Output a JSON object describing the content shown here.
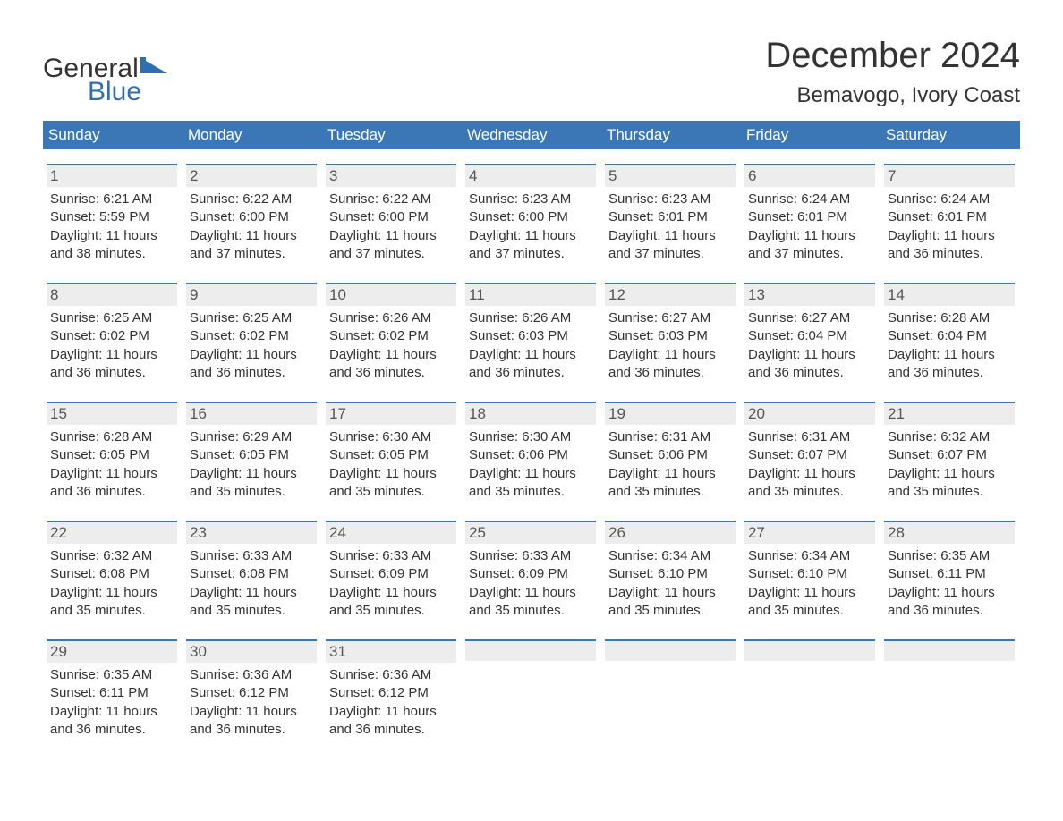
{
  "logo": {
    "top_text": "General",
    "bottom_text": "Blue",
    "icon_color": "#2f6fb1"
  },
  "title": "December 2024",
  "location": "Bemavogo, Ivory Coast",
  "colors": {
    "header_bg": "#3b76b6",
    "header_text": "#ffffff",
    "daynum_bg": "#ededed",
    "daynum_border": "#3b76b6",
    "body_text": "#333333",
    "logo_blue": "#2f6fb1"
  },
  "day_labels": [
    "Sunday",
    "Monday",
    "Tuesday",
    "Wednesday",
    "Thursday",
    "Friday",
    "Saturday"
  ],
  "weeks": [
    [
      {
        "num": "1",
        "sunrise": "Sunrise: 6:21 AM",
        "sunset": "Sunset: 5:59 PM",
        "daylight": "Daylight: 11 hours and 38 minutes."
      },
      {
        "num": "2",
        "sunrise": "Sunrise: 6:22 AM",
        "sunset": "Sunset: 6:00 PM",
        "daylight": "Daylight: 11 hours and 37 minutes."
      },
      {
        "num": "3",
        "sunrise": "Sunrise: 6:22 AM",
        "sunset": "Sunset: 6:00 PM",
        "daylight": "Daylight: 11 hours and 37 minutes."
      },
      {
        "num": "4",
        "sunrise": "Sunrise: 6:23 AM",
        "sunset": "Sunset: 6:00 PM",
        "daylight": "Daylight: 11 hours and 37 minutes."
      },
      {
        "num": "5",
        "sunrise": "Sunrise: 6:23 AM",
        "sunset": "Sunset: 6:01 PM",
        "daylight": "Daylight: 11 hours and 37 minutes."
      },
      {
        "num": "6",
        "sunrise": "Sunrise: 6:24 AM",
        "sunset": "Sunset: 6:01 PM",
        "daylight": "Daylight: 11 hours and 37 minutes."
      },
      {
        "num": "7",
        "sunrise": "Sunrise: 6:24 AM",
        "sunset": "Sunset: 6:01 PM",
        "daylight": "Daylight: 11 hours and 36 minutes."
      }
    ],
    [
      {
        "num": "8",
        "sunrise": "Sunrise: 6:25 AM",
        "sunset": "Sunset: 6:02 PM",
        "daylight": "Daylight: 11 hours and 36 minutes."
      },
      {
        "num": "9",
        "sunrise": "Sunrise: 6:25 AM",
        "sunset": "Sunset: 6:02 PM",
        "daylight": "Daylight: 11 hours and 36 minutes."
      },
      {
        "num": "10",
        "sunrise": "Sunrise: 6:26 AM",
        "sunset": "Sunset: 6:02 PM",
        "daylight": "Daylight: 11 hours and 36 minutes."
      },
      {
        "num": "11",
        "sunrise": "Sunrise: 6:26 AM",
        "sunset": "Sunset: 6:03 PM",
        "daylight": "Daylight: 11 hours and 36 minutes."
      },
      {
        "num": "12",
        "sunrise": "Sunrise: 6:27 AM",
        "sunset": "Sunset: 6:03 PM",
        "daylight": "Daylight: 11 hours and 36 minutes."
      },
      {
        "num": "13",
        "sunrise": "Sunrise: 6:27 AM",
        "sunset": "Sunset: 6:04 PM",
        "daylight": "Daylight: 11 hours and 36 minutes."
      },
      {
        "num": "14",
        "sunrise": "Sunrise: 6:28 AM",
        "sunset": "Sunset: 6:04 PM",
        "daylight": "Daylight: 11 hours and 36 minutes."
      }
    ],
    [
      {
        "num": "15",
        "sunrise": "Sunrise: 6:28 AM",
        "sunset": "Sunset: 6:05 PM",
        "daylight": "Daylight: 11 hours and 36 minutes."
      },
      {
        "num": "16",
        "sunrise": "Sunrise: 6:29 AM",
        "sunset": "Sunset: 6:05 PM",
        "daylight": "Daylight: 11 hours and 35 minutes."
      },
      {
        "num": "17",
        "sunrise": "Sunrise: 6:30 AM",
        "sunset": "Sunset: 6:05 PM",
        "daylight": "Daylight: 11 hours and 35 minutes."
      },
      {
        "num": "18",
        "sunrise": "Sunrise: 6:30 AM",
        "sunset": "Sunset: 6:06 PM",
        "daylight": "Daylight: 11 hours and 35 minutes."
      },
      {
        "num": "19",
        "sunrise": "Sunrise: 6:31 AM",
        "sunset": "Sunset: 6:06 PM",
        "daylight": "Daylight: 11 hours and 35 minutes."
      },
      {
        "num": "20",
        "sunrise": "Sunrise: 6:31 AM",
        "sunset": "Sunset: 6:07 PM",
        "daylight": "Daylight: 11 hours and 35 minutes."
      },
      {
        "num": "21",
        "sunrise": "Sunrise: 6:32 AM",
        "sunset": "Sunset: 6:07 PM",
        "daylight": "Daylight: 11 hours and 35 minutes."
      }
    ],
    [
      {
        "num": "22",
        "sunrise": "Sunrise: 6:32 AM",
        "sunset": "Sunset: 6:08 PM",
        "daylight": "Daylight: 11 hours and 35 minutes."
      },
      {
        "num": "23",
        "sunrise": "Sunrise: 6:33 AM",
        "sunset": "Sunset: 6:08 PM",
        "daylight": "Daylight: 11 hours and 35 minutes."
      },
      {
        "num": "24",
        "sunrise": "Sunrise: 6:33 AM",
        "sunset": "Sunset: 6:09 PM",
        "daylight": "Daylight: 11 hours and 35 minutes."
      },
      {
        "num": "25",
        "sunrise": "Sunrise: 6:33 AM",
        "sunset": "Sunset: 6:09 PM",
        "daylight": "Daylight: 11 hours and 35 minutes."
      },
      {
        "num": "26",
        "sunrise": "Sunrise: 6:34 AM",
        "sunset": "Sunset: 6:10 PM",
        "daylight": "Daylight: 11 hours and 35 minutes."
      },
      {
        "num": "27",
        "sunrise": "Sunrise: 6:34 AM",
        "sunset": "Sunset: 6:10 PM",
        "daylight": "Daylight: 11 hours and 35 minutes."
      },
      {
        "num": "28",
        "sunrise": "Sunrise: 6:35 AM",
        "sunset": "Sunset: 6:11 PM",
        "daylight": "Daylight: 11 hours and 36 minutes."
      }
    ],
    [
      {
        "num": "29",
        "sunrise": "Sunrise: 6:35 AM",
        "sunset": "Sunset: 6:11 PM",
        "daylight": "Daylight: 11 hours and 36 minutes."
      },
      {
        "num": "30",
        "sunrise": "Sunrise: 6:36 AM",
        "sunset": "Sunset: 6:12 PM",
        "daylight": "Daylight: 11 hours and 36 minutes."
      },
      {
        "num": "31",
        "sunrise": "Sunrise: 6:36 AM",
        "sunset": "Sunset: 6:12 PM",
        "daylight": "Daylight: 11 hours and 36 minutes."
      },
      null,
      null,
      null,
      null
    ]
  ]
}
